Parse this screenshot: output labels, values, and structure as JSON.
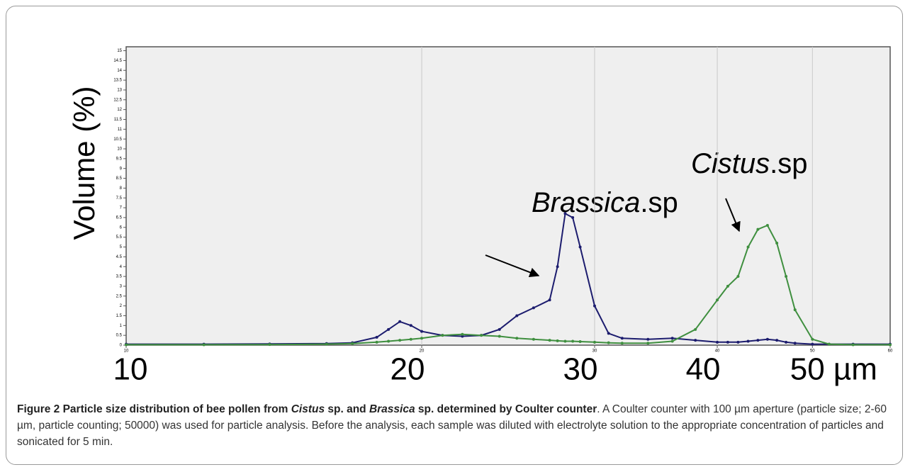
{
  "chart_data": {
    "type": "line",
    "ylabel": "Volume (%)",
    "x_axis_labels": [
      "10",
      "20",
      "30",
      "40",
      "50 µm"
    ],
    "annotations": [
      {
        "italic": "Brassica",
        "text": ".sp"
      },
      {
        "italic": "Cistus",
        "text": ".sp"
      }
    ],
    "x": [
      10,
      12,
      14,
      16,
      17,
      18,
      18.5,
      19,
      19.5,
      20,
      21,
      22,
      23,
      24,
      25,
      26,
      27,
      27.5,
      28,
      28.5,
      29,
      30,
      31,
      32,
      34,
      36,
      38,
      40,
      41,
      42,
      43,
      44,
      45,
      46,
      47,
      48,
      50,
      52,
      55,
      60
    ],
    "series": [
      {
        "color": "#1c1c6e",
        "values": [
          0.05,
          0.05,
          0.06,
          0.08,
          0.12,
          0.4,
          0.8,
          1.2,
          1.0,
          0.7,
          0.5,
          0.45,
          0.5,
          0.8,
          1.5,
          1.9,
          2.3,
          4.0,
          6.7,
          6.5,
          5.0,
          2.0,
          0.6,
          0.35,
          0.3,
          0.35,
          0.25,
          0.15,
          0.15,
          0.15,
          0.2,
          0.25,
          0.3,
          0.25,
          0.15,
          0.1,
          0.05,
          0.05,
          0.05,
          0.05
        ]
      },
      {
        "color": "#3f8f3f",
        "values": [
          0.02,
          0.02,
          0.03,
          0.05,
          0.08,
          0.15,
          0.2,
          0.25,
          0.3,
          0.35,
          0.5,
          0.55,
          0.5,
          0.45,
          0.35,
          0.3,
          0.25,
          0.22,
          0.2,
          0.2,
          0.18,
          0.15,
          0.12,
          0.1,
          0.1,
          0.2,
          0.8,
          2.3,
          3.0,
          3.5,
          5.0,
          5.9,
          6.1,
          5.2,
          3.5,
          1.8,
          0.3,
          0.05,
          0.02,
          0.02
        ]
      }
    ],
    "xlim": [
      10,
      60
    ],
    "xscale": "log",
    "xticks": [
      10,
      20,
      30,
      40,
      50,
      60
    ],
    "ylim": [
      0,
      15.2
    ],
    "yticks": [
      0,
      0.5,
      1,
      1.5,
      2,
      2.5,
      3,
      3.5,
      4,
      4.5,
      5,
      5.5,
      6,
      6.5,
      7,
      7.5,
      8,
      8.5,
      9,
      9.5,
      10,
      10.5,
      11,
      11.5,
      12,
      12.5,
      13,
      13.5,
      14,
      14.5,
      15
    ],
    "grid": true
  },
  "caption": {
    "bold": [
      "Figure 2 Particle size distribution of bee pollen from ",
      "Cistus",
      " sp. and ",
      "Brassica",
      " sp. determined by Coulter counter"
    ],
    "text": ". A Coulter counter with 100 µm aperture (particle size; 2-60 µm, particle counting; 50000) was used for particle analysis. Before the analysis, each sample was diluted with electrolyte solution to the appropriate concentration of particles and sonicated for 5 min."
  }
}
